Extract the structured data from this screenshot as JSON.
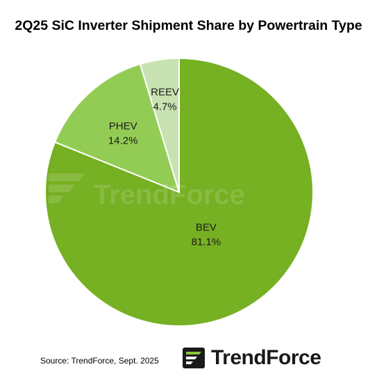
{
  "chart_data": {
    "type": "pie",
    "title": "2Q25 SiC Inverter Shipment Share by Powertrain Type",
    "slices": [
      {
        "name": "BEV",
        "value": 81.1,
        "label": "81.1%",
        "color": "#76b023"
      },
      {
        "name": "PHEV",
        "value": 14.2,
        "label": "14.2%",
        "color": "#93cc55"
      },
      {
        "name": "REEV",
        "value": 4.7,
        "label": "4.7%",
        "color": "#c8e2b1"
      }
    ],
    "start": "12 o'clock",
    "direction": "clockwise"
  },
  "source": "Source: TrendForce, Sept. 2025",
  "brand": {
    "name": "TrendForce",
    "watermark": "TrendForce"
  }
}
